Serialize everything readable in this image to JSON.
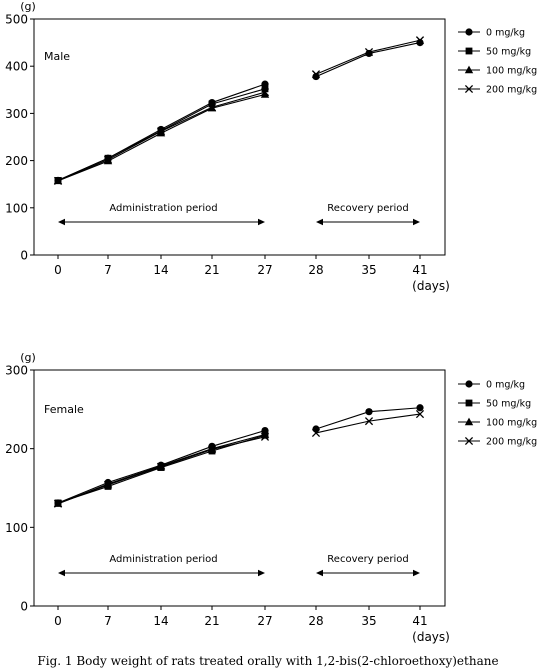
{
  "chart_data": [
    {
      "type": "line",
      "panel_label": "Male",
      "y_unit": "(g)",
      "x_unit": "(days)",
      "ylim": [
        0,
        500
      ],
      "y_ticks": [
        "0",
        "100",
        "200",
        "300",
        "400",
        "500"
      ],
      "categories": [
        "0",
        "7",
        "14",
        "21",
        "27",
        "28",
        "35",
        "41"
      ],
      "annotations": {
        "administration": "Administration period",
        "recovery": "Recovery period"
      },
      "series": [
        {
          "name": "0 mg/kg",
          "marker": "circle",
          "values": [
            158,
            205,
            266,
            323,
            362,
            378,
            427,
            450
          ]
        },
        {
          "name": "50 mg/kg",
          "marker": "square",
          "values": [
            158,
            205,
            263,
            320,
            352,
            null,
            null,
            null
          ]
        },
        {
          "name": "100 mg/kg",
          "marker": "triangle",
          "values": [
            157,
            199,
            258,
            311,
            340,
            null,
            null,
            null
          ]
        },
        {
          "name": "200 mg/kg",
          "marker": "x",
          "values": [
            157,
            202,
            262,
            313,
            345,
            383,
            430,
            455
          ]
        }
      ]
    },
    {
      "type": "line",
      "panel_label": "Female",
      "y_unit": "(g)",
      "x_unit": "(days)",
      "ylim": [
        0,
        300
      ],
      "y_ticks": [
        "0",
        "100",
        "200",
        "300"
      ],
      "categories": [
        "0",
        "7",
        "14",
        "21",
        "27",
        "28",
        "35",
        "41"
      ],
      "annotations": {
        "administration": "Administration period",
        "recovery": "Recovery period"
      },
      "series": [
        {
          "name": "0 mg/kg",
          "marker": "circle",
          "values": [
            131,
            157,
            179,
            203,
            223,
            225,
            247,
            252
          ]
        },
        {
          "name": "50 mg/kg",
          "marker": "square",
          "values": [
            131,
            152,
            176,
            197,
            217,
            null,
            null,
            null
          ]
        },
        {
          "name": "100 mg/kg",
          "marker": "triangle",
          "values": [
            130,
            155,
            178,
            200,
            218,
            null,
            null,
            null
          ]
        },
        {
          "name": "200 mg/kg",
          "marker": "x",
          "values": [
            130,
            154,
            177,
            199,
            215,
            220,
            235,
            244
          ]
        }
      ]
    }
  ],
  "caption": "Fig. 1  Body weight of rats treated orally with 1,2-bis(2-chloroethoxy)ethane"
}
